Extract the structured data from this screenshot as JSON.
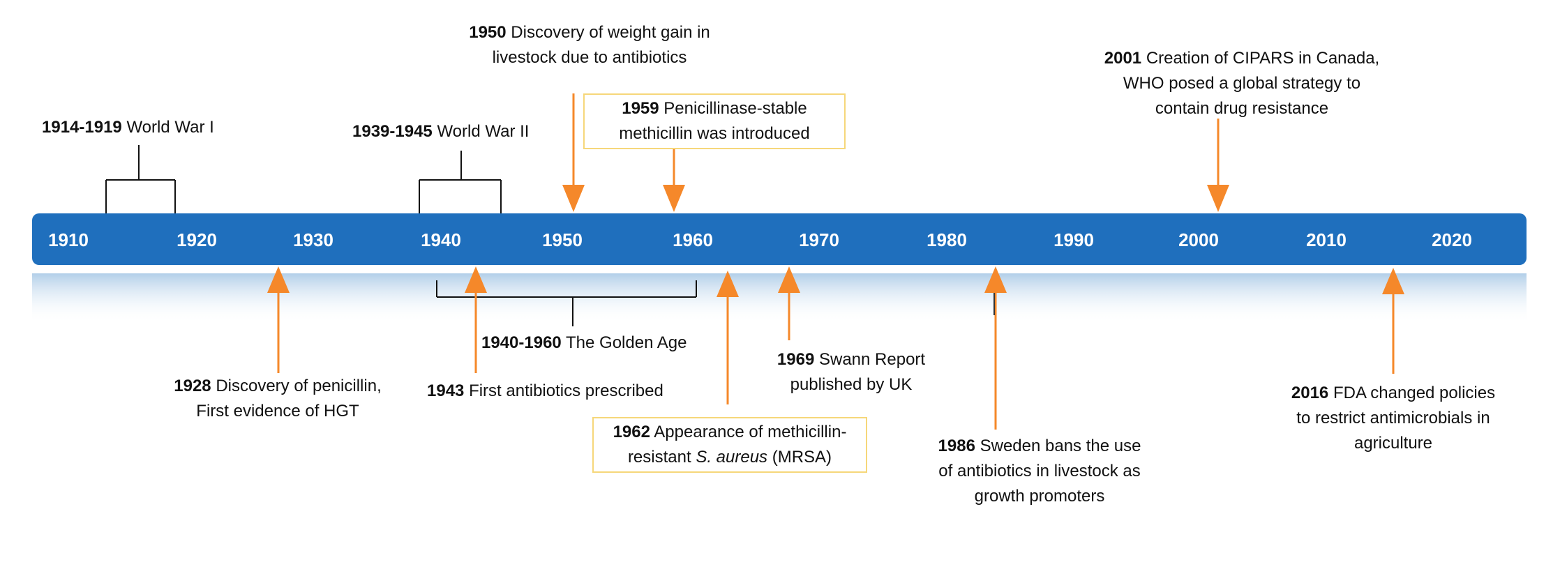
{
  "timeline": {
    "year_labels": [
      "1910",
      "1920",
      "1930",
      "1940",
      "1950",
      "1960",
      "1970",
      "1980",
      "1990",
      "2000",
      "2010",
      "2020"
    ],
    "colors": {
      "bar": "#1f6fbd",
      "arrow": "#f5882a",
      "bracket": "#111111",
      "box_border": "#f6d77a"
    }
  },
  "events": [
    {
      "id": "ww1",
      "year": "1914-1919",
      "text": "World War I"
    },
    {
      "id": "ww2",
      "year": "1939-1945",
      "text": "World War II"
    },
    {
      "id": "y1950",
      "year": "1950",
      "text_line1": "Discovery of weight gain in",
      "text_line2": "livestock due to antibiotics"
    },
    {
      "id": "y1959",
      "year": "1959",
      "text_line1": "Penicillinase-stable",
      "text_line2": "methicillin was introduced"
    },
    {
      "id": "y2001",
      "year": "2001",
      "text_line1": "Creation of CIPARS in Canada,",
      "text_line2": "WHO posed a global strategy to",
      "text_line3": "contain drug resistance"
    },
    {
      "id": "y1928",
      "year": "1928",
      "text_line1": "Discovery of penicillin,",
      "text_line2": "First evidence of HGT"
    },
    {
      "id": "golden",
      "year": "1940-1960",
      "text": "The Golden Age"
    },
    {
      "id": "y1943",
      "year": "1943",
      "text": "First antibiotics prescribed"
    },
    {
      "id": "y1962",
      "year": "1962",
      "text_pre": "Appearance of methicillin-",
      "text_mid_pre": "resistant ",
      "text_italic": "S. aureus",
      "text_post": " (MRSA)"
    },
    {
      "id": "y1969",
      "year": "1969",
      "text_line1": "Swann Report",
      "text_line2": "published by UK"
    },
    {
      "id": "y1986",
      "year": "1986",
      "text_line1": "Sweden bans the use",
      "text_line2": "of antibiotics in livestock as",
      "text_line3": "growth promoters"
    },
    {
      "id": "y2016",
      "year": "2016",
      "text_line1": "FDA changed policies",
      "text_line2": "to restrict antimicrobials in",
      "text_line3": "agriculture"
    }
  ]
}
